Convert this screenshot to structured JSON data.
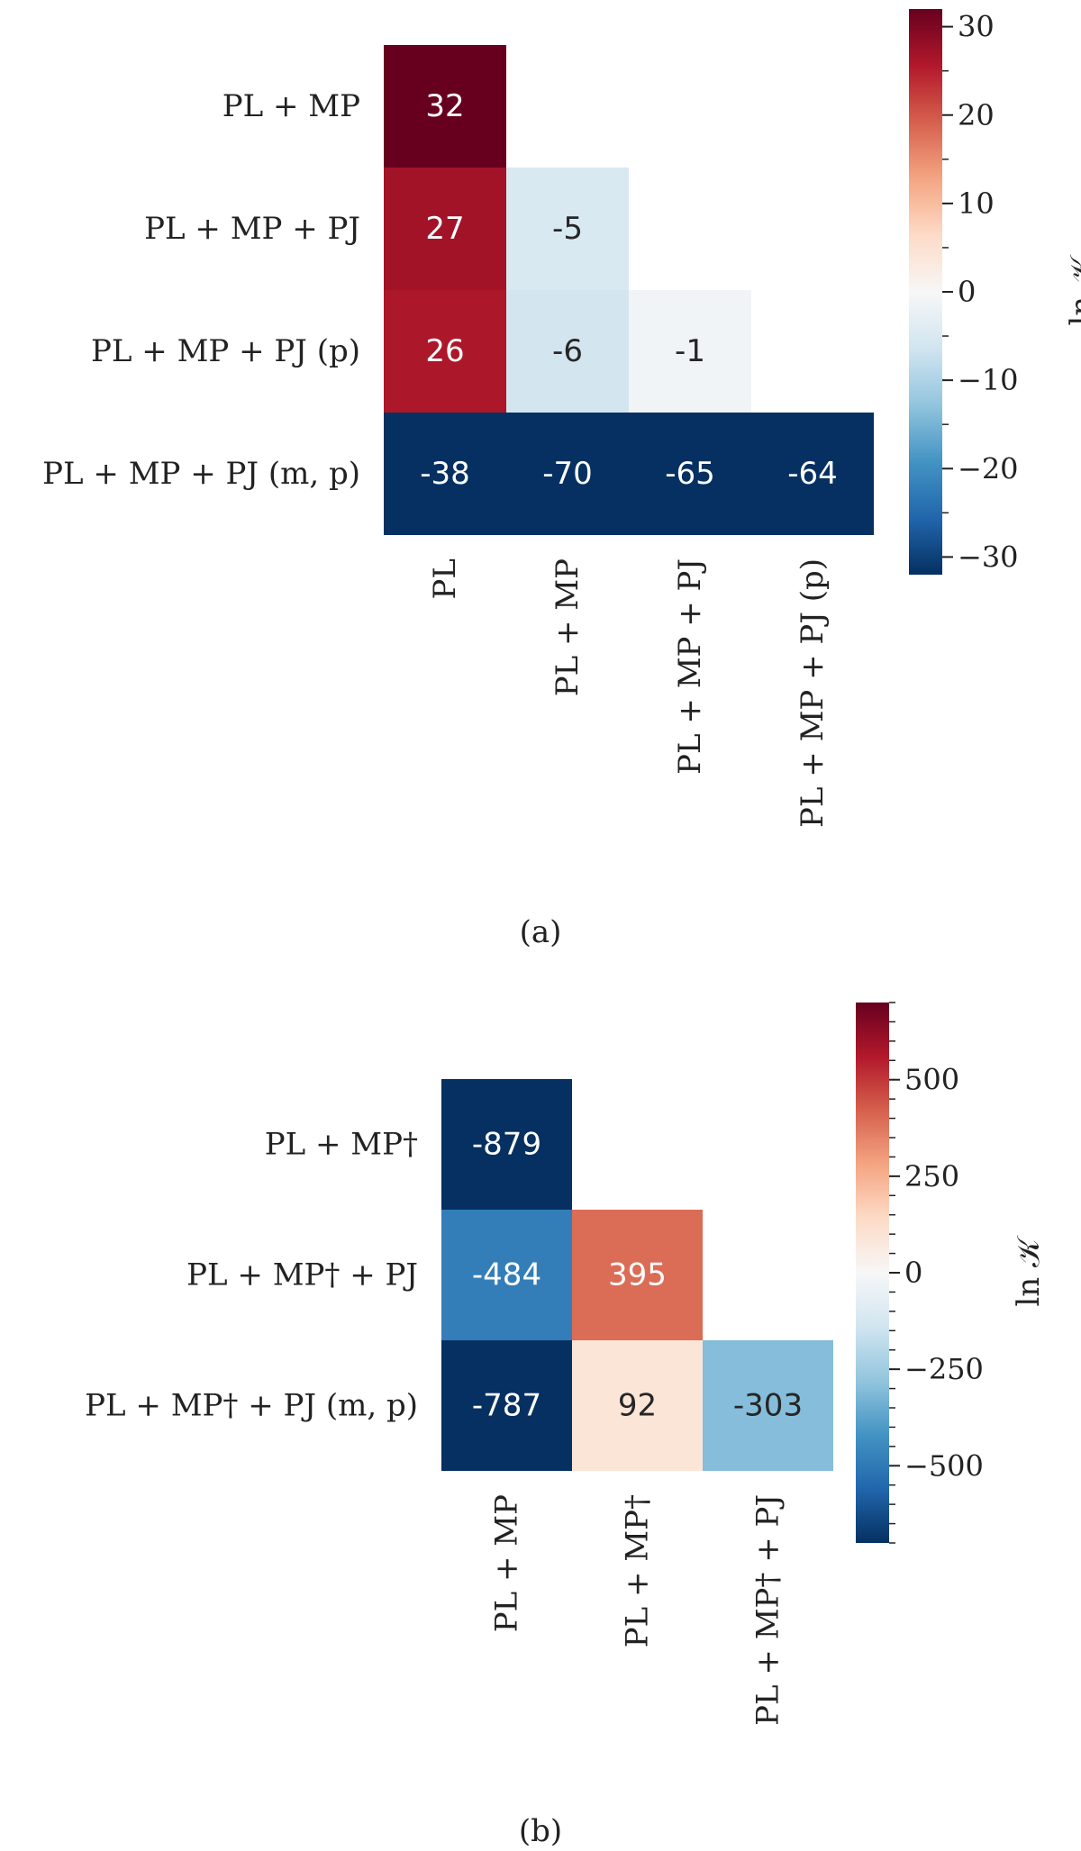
{
  "colorscale": {
    "min_color": "#053061",
    "mid_color": "#f7f7f7",
    "max_color": "#67001f"
  },
  "chart_data": [
    {
      "type": "heatmap",
      "caption": "(a)",
      "colorbar_label": "ln 𝒦",
      "vmin": -32,
      "vmax": 32,
      "colorbar_ticks": [
        {
          "value": 30,
          "label": "30"
        },
        {
          "value": 20,
          "label": "20"
        },
        {
          "value": 10,
          "label": "10"
        },
        {
          "value": 0,
          "label": "0"
        },
        {
          "value": -10,
          "label": "−10"
        },
        {
          "value": -20,
          "label": "−20"
        },
        {
          "value": -30,
          "label": "−30"
        }
      ],
      "row_labels": [
        "PL + MP",
        "PL + MP + PJ",
        "PL + MP + PJ (p)",
        "PL + MP + PJ (m, p)"
      ],
      "col_labels": [
        "PL",
        "PL + MP",
        "PL + MP + PJ",
        "PL + MP + PJ (p)"
      ],
      "values": [
        [
          32,
          null,
          null,
          null
        ],
        [
          27,
          -5,
          null,
          null
        ],
        [
          26,
          -6,
          -1,
          null
        ],
        [
          -38,
          -70,
          -65,
          -64
        ]
      ],
      "labels": [
        [
          "32",
          "",
          "",
          ""
        ],
        [
          "27",
          "-5",
          "",
          ""
        ],
        [
          "26",
          "-6",
          "-1",
          ""
        ],
        [
          "-38",
          "-70",
          "-65",
          "-64"
        ]
      ]
    },
    {
      "type": "heatmap",
      "caption": "(b)",
      "colorbar_label": "ln 𝒦",
      "vmin": -700,
      "vmax": 700,
      "colorbar_ticks": [
        {
          "value": 500,
          "label": "500"
        },
        {
          "value": 250,
          "label": "250"
        },
        {
          "value": 0,
          "label": "0"
        },
        {
          "value": -250,
          "label": "−250"
        },
        {
          "value": -500,
          "label": "−500"
        }
      ],
      "row_labels": [
        "PL + MP†",
        "PL + MP† + PJ",
        "PL + MP† + PJ (m, p)"
      ],
      "col_labels": [
        "PL + MP",
        "PL + MP†",
        "PL + MP† + PJ"
      ],
      "values": [
        [
          -879,
          null,
          null
        ],
        [
          -484,
          395,
          null
        ],
        [
          -787,
          92,
          -303
        ]
      ],
      "labels": [
        [
          "-879",
          "",
          ""
        ],
        [
          "-484",
          "395",
          ""
        ],
        [
          "-787",
          "92",
          "-303"
        ]
      ]
    }
  ]
}
